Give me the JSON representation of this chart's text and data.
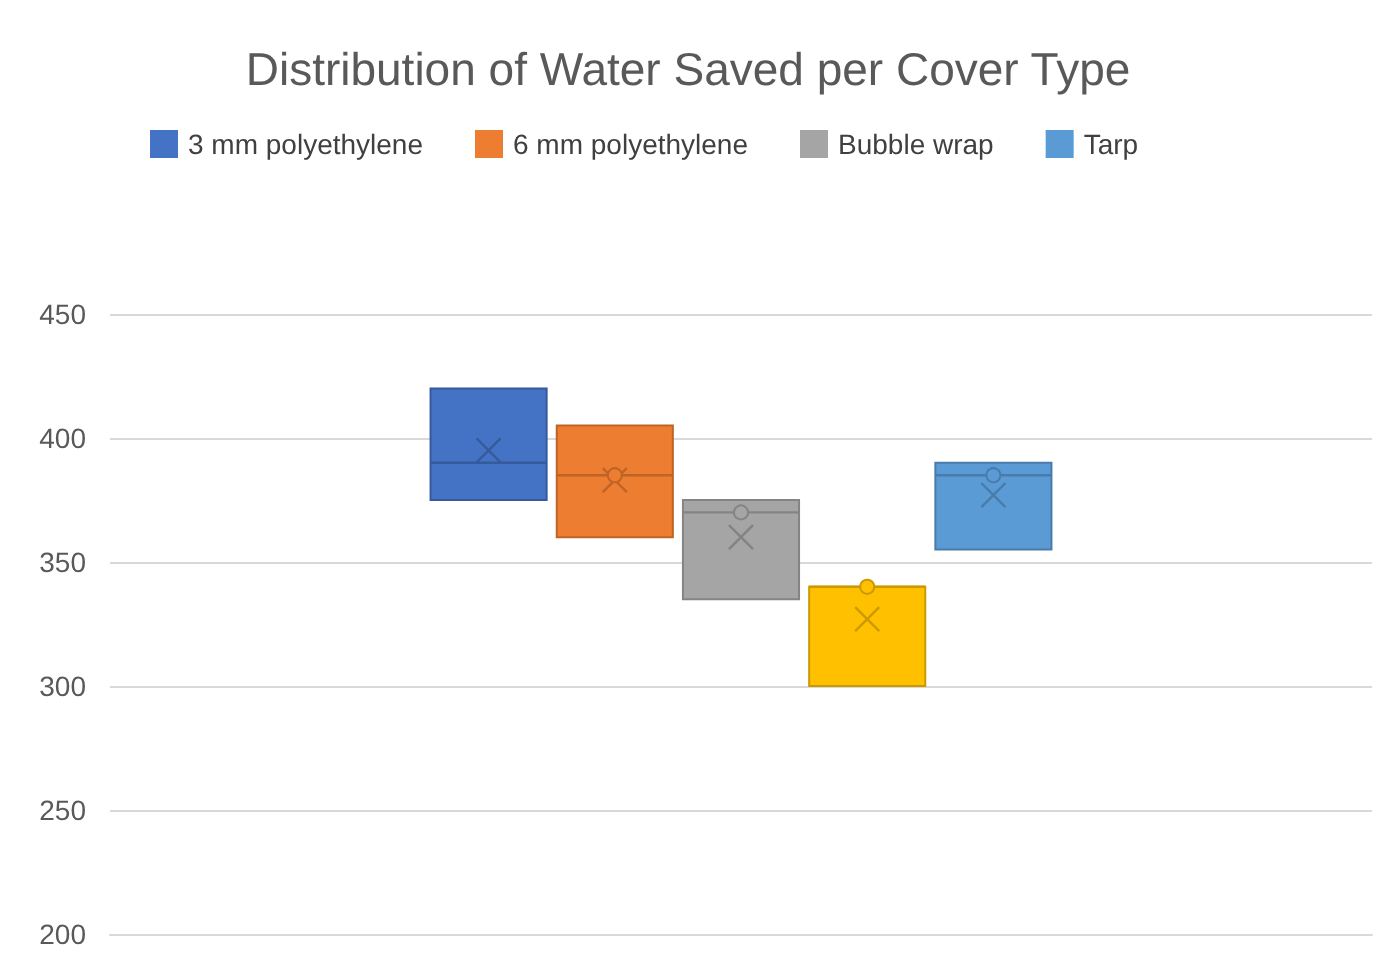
{
  "chart_data": {
    "type": "box",
    "title": "Distribution of Water Saved per Cover Type",
    "categories": [
      null
    ],
    "series": [
      {
        "name": "3 mm polyethylene",
        "color": "#4472c4",
        "boxes": [
          {
            "low": 375,
            "q1": 375,
            "median": 390,
            "q3": 420,
            "high": 420,
            "mean": 395
          }
        ]
      },
      {
        "name": "6 mm polyethylene",
        "color": "#ed7d31",
        "boxes": [
          {
            "low": 360,
            "q1": 360,
            "median": 385,
            "q3": 405,
            "high": 405,
            "mean": 383,
            "outliers": [
              385
            ]
          }
        ]
      },
      {
        "name": "Bubble wrap",
        "color": "#a5a5a5",
        "boxes": [
          {
            "low": 335,
            "q1": 335,
            "median": 370,
            "q3": 375,
            "high": 375,
            "mean": 360,
            "outliers": [
              370
            ]
          }
        ]
      },
      {
        "color": "#ffc000",
        "boxes": [
          {
            "low": 300,
            "q1": 300,
            "median": 340,
            "q3": 340,
            "high": 340,
            "mean": 327,
            "outliers": [
              340
            ]
          }
        ]
      },
      {
        "name": "Tarp",
        "color": "#5b9bd5",
        "boxes": [
          {
            "low": 355,
            "q1": 355,
            "median": 385,
            "q3": 390,
            "high": 390,
            "mean": 377,
            "outliers": [
              385
            ]
          }
        ]
      }
    ],
    "ylim": [
      200,
      450
    ],
    "yticks": [
      200,
      250,
      300,
      350,
      400,
      450
    ],
    "grid": "y",
    "legend": "top left"
  }
}
